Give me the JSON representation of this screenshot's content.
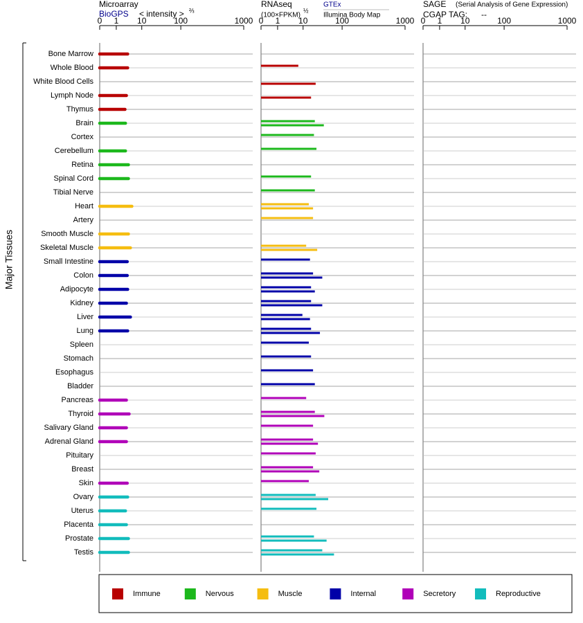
{
  "y_axis_label": "Major Tissues",
  "categories": [
    "Bone Marrow",
    "Whole Blood",
    "White Blood Cells",
    "Lymph Node",
    "Thymus",
    "Brain",
    "Cortex",
    "Cerebellum",
    "Retina",
    "Spinal Cord",
    "Tibial Nerve",
    "Heart",
    "Artery",
    "Smooth Muscle",
    "Skeletal Muscle",
    "Small Intestine",
    "Colon",
    "Adipocyte",
    "Kidney",
    "Liver",
    "Lung",
    "Spleen",
    "Stomach",
    "Esophagus",
    "Bladder",
    "Pancreas",
    "Thyroid",
    "Salivary Gland",
    "Adrenal Gland",
    "Pituitary",
    "Breast",
    "Skin",
    "Ovary",
    "Uterus",
    "Placenta",
    "Prostate",
    "Testis"
  ],
  "category_groups": [
    0,
    0,
    0,
    0,
    0,
    1,
    1,
    1,
    1,
    1,
    1,
    2,
    2,
    2,
    2,
    3,
    3,
    3,
    3,
    3,
    3,
    3,
    3,
    3,
    3,
    4,
    4,
    4,
    4,
    4,
    4,
    4,
    5,
    5,
    5,
    5,
    5
  ],
  "groups": [
    {
      "name": "Immune",
      "color": "#b80000"
    },
    {
      "name": "Nervous",
      "color": "#1cb81c"
    },
    {
      "name": "Muscle",
      "color": "#f5bd10"
    },
    {
      "name": "Internal",
      "color": "#0000a8"
    },
    {
      "name": "Secretory",
      "color": "#b000b8"
    },
    {
      "name": "Reproductive",
      "color": "#12bcbc"
    }
  ],
  "chart_data": [
    {
      "type": "bar",
      "title": "Microarray",
      "source": "BioGPS",
      "axis_label": "< intensity >",
      "axis_exponent": "⅔",
      "xlim": [
        0,
        1000
      ],
      "xticks": [
        0,
        1,
        10,
        100,
        1000
      ],
      "series": [
        {
          "values": [
            2.8,
            2.8,
            null,
            2.5,
            2.2,
            2.3,
            null,
            2.3,
            3.0,
            3.0,
            null,
            4.1,
            null,
            3.0,
            3.6,
            2.7,
            2.7,
            2.8,
            2.5,
            3.6,
            2.8,
            null,
            null,
            null,
            null,
            2.5,
            3.2,
            2.5,
            2.5,
            null,
            null,
            2.7,
            2.8,
            2.3,
            2.5,
            3.0,
            3.0
          ]
        }
      ]
    },
    {
      "type": "bar",
      "title": "RNAseq",
      "axis_label": "(100×FPKM)",
      "axis_exponent": "½",
      "xlim": [
        0,
        1000
      ],
      "xticks": [
        0,
        1,
        10,
        100,
        1000
      ],
      "series": [
        {
          "name": "GTEx",
          "values": [
            null,
            6.5,
            null,
            null,
            null,
            20,
            19,
            22,
            null,
            16,
            20,
            14,
            18,
            null,
            12,
            15,
            18,
            16,
            16,
            9.4,
            16,
            14,
            16,
            18,
            20,
            12,
            20,
            18,
            18,
            21,
            18,
            14,
            21,
            22,
            null,
            19,
            31
          ]
        },
        {
          "name": "Illumina Body Map",
          "values": [
            null,
            null,
            21,
            16,
            null,
            34,
            null,
            null,
            null,
            null,
            null,
            18,
            null,
            null,
            23,
            null,
            31,
            20,
            31,
            15,
            27,
            null,
            null,
            null,
            null,
            null,
            35,
            null,
            24,
            null,
            26,
            null,
            44,
            null,
            null,
            40,
            62
          ]
        }
      ]
    },
    {
      "type": "bar",
      "title": "SAGE",
      "subtitle": "(Serial Analysis of Gene Expression)",
      "tag_label": "CGAP TAG:",
      "tag_value": "--",
      "xlim": [
        0,
        1000
      ],
      "xticks": [
        0,
        1,
        10,
        100,
        1000
      ],
      "series": []
    }
  ]
}
